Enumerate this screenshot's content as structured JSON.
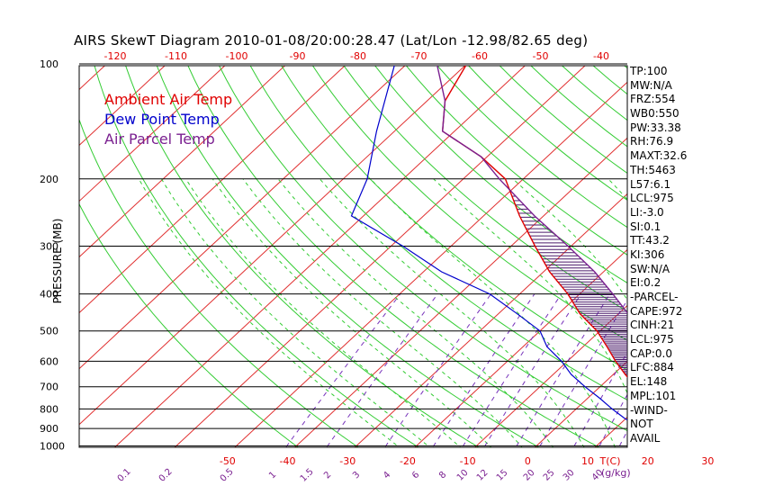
{
  "title": "AIRS SkewT Diagram 2010-01-08/20:00:28.47 (Lat/Lon -12.98/82.65 deg)",
  "legend": [
    {
      "label": "Ambient Air Temp",
      "color": "#e00000"
    },
    {
      "label": "Dew Point Temp",
      "color": "#0000cc"
    },
    {
      "label": "Air Parcel Temp",
      "color": "#7a2090"
    }
  ],
  "stats": [
    {
      "k": "TP",
      "v": "100"
    },
    {
      "k": "MW",
      "v": "N/A"
    },
    {
      "k": "FRZ",
      "v": "554"
    },
    {
      "k": "WB0",
      "v": "550"
    },
    {
      "k": "PW",
      "v": "33.38"
    },
    {
      "k": "RH",
      "v": "76.9"
    },
    {
      "k": "MAXT",
      "v": "32.6"
    },
    {
      "k": "TH",
      "v": "5463"
    },
    {
      "k": "L57",
      "v": "6.1"
    },
    {
      "k": "LCL",
      "v": "975"
    },
    {
      "k": "LI",
      "v": "-3.0"
    },
    {
      "k": "SI",
      "v": "0.1"
    },
    {
      "k": "TT",
      "v": "43.2"
    },
    {
      "k": "KI",
      "v": "306"
    },
    {
      "k": "SW",
      "v": "N/A"
    },
    {
      "k": "EI",
      "v": "0.2"
    },
    {
      "k": "-PARCEL-",
      "v": ""
    },
    {
      "k": "CAPE",
      "v": "972"
    },
    {
      "k": "CINH",
      "v": "21"
    },
    {
      "k": "LCL",
      "v": "975"
    },
    {
      "k": "CAP",
      "v": "0.0"
    },
    {
      "k": "LFC",
      "v": "884"
    },
    {
      "k": "EL",
      "v": "148"
    },
    {
      "k": "MPL",
      "v": "101"
    },
    {
      "k": "-WIND-",
      "v": ""
    },
    {
      "k": "NOT",
      "v": ""
    },
    {
      "k": "AVAIL",
      "v": ""
    }
  ],
  "chart_data": {
    "type": "line",
    "title": "AIRS SkewT Diagram 2010-01-08/20:00:28.47 (Lat/Lon -12.98/82.65 deg)",
    "ylabel": "PRESSURE (MB)",
    "xlabel": "T(C)",
    "ylim": [
      1050,
      100
    ],
    "y_scale": "log",
    "pressure_ticks": [
      100,
      200,
      300,
      400,
      500,
      600,
      700,
      800,
      900,
      1000
    ],
    "bottom_temp_ticks": [
      -50,
      -40,
      -30,
      -20,
      -10,
      0,
      10,
      20,
      30
    ],
    "top_temp_ticks": [
      -120,
      -110,
      -100,
      -90,
      -80,
      -70,
      -60,
      -50,
      -40
    ],
    "mixing_ratio_label": "g/kg",
    "mixing_ratio_ticks": [
      "0.1",
      "0.2",
      "0.5",
      "1",
      "1.5",
      "2",
      "3",
      "4",
      "6",
      "8",
      "10",
      "12",
      "15",
      "20",
      "25",
      "30",
      "40"
    ],
    "series": [
      {
        "name": "Ambient Air Temp",
        "color": "#e00000",
        "points": [
          [
            1000,
            24
          ],
          [
            975,
            21
          ],
          [
            950,
            20.5
          ],
          [
            900,
            18.5
          ],
          [
            850,
            15.5
          ],
          [
            800,
            12.5
          ],
          [
            750,
            9
          ],
          [
            700,
            6
          ],
          [
            650,
            2
          ],
          [
            600,
            -2
          ],
          [
            550,
            -6
          ],
          [
            500,
            -10.5
          ],
          [
            450,
            -16.5
          ],
          [
            400,
            -22
          ],
          [
            350,
            -29
          ],
          [
            300,
            -36
          ],
          [
            250,
            -44
          ],
          [
            200,
            -53
          ],
          [
            175,
            -61
          ],
          [
            150,
            -72
          ],
          [
            125,
            -77
          ],
          [
            100,
            -80
          ]
        ]
      },
      {
        "name": "Dew Point Temp",
        "color": "#0000cc",
        "points": [
          [
            1000,
            22.5
          ],
          [
            975,
            20
          ],
          [
            950,
            18.5
          ],
          [
            900,
            15
          ],
          [
            850,
            10
          ],
          [
            800,
            6
          ],
          [
            750,
            2
          ],
          [
            700,
            -2.5
          ],
          [
            650,
            -7
          ],
          [
            600,
            -11
          ],
          [
            550,
            -16
          ],
          [
            500,
            -20
          ],
          [
            450,
            -27
          ],
          [
            400,
            -35
          ],
          [
            350,
            -47
          ],
          [
            300,
            -58
          ],
          [
            250,
            -72
          ],
          [
            200,
            -76
          ],
          [
            150,
            -83
          ],
          [
            100,
            -92
          ]
        ]
      },
      {
        "name": "Air Parcel Temp",
        "color": "#7a2090",
        "points": [
          [
            1000,
            24
          ],
          [
            975,
            21.5
          ],
          [
            950,
            21.3
          ],
          [
            900,
            20.2
          ],
          [
            850,
            18
          ],
          [
            800,
            16.2
          ],
          [
            750,
            13.8
          ],
          [
            700,
            11.3
          ],
          [
            650,
            8.4
          ],
          [
            600,
            5
          ],
          [
            550,
            1.2
          ],
          [
            500,
            -3.3
          ],
          [
            450,
            -8.5
          ],
          [
            400,
            -14.5
          ],
          [
            350,
            -21.5
          ],
          [
            300,
            -30.5
          ],
          [
            250,
            -41.5
          ],
          [
            200,
            -54
          ],
          [
            175,
            -61
          ],
          [
            150,
            -72
          ],
          [
            125,
            -77
          ],
          [
            100,
            -85
          ]
        ]
      }
    ]
  }
}
